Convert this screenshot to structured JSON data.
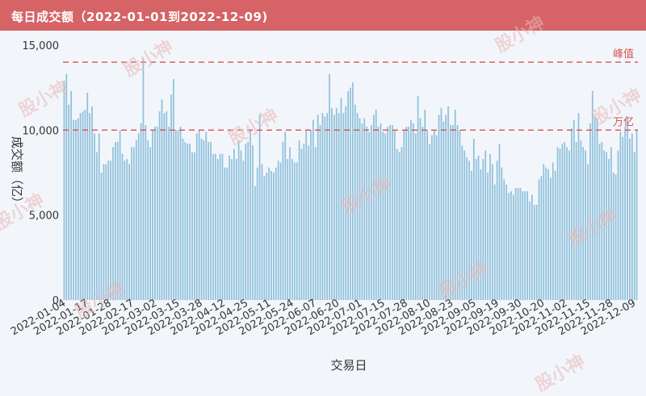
{
  "header": {
    "title": "每日成交额（2022-01-01到2022-12-09)"
  },
  "watermark": "股小神",
  "colors": {
    "header_bg": "#d66365",
    "bar": "#8fc0dc",
    "ref_line": "#d9534f",
    "background": "#f2f6fa"
  },
  "chart_data": {
    "type": "bar",
    "title": "每日成交额（2022-01-01到2022-12-09)",
    "xlabel": "交易日",
    "ylabel": "成交额（亿）",
    "ylim": [
      0,
      15000
    ],
    "yticks": [
      0,
      5000,
      10000,
      15000
    ],
    "ytick_labels": [
      "0",
      "5,000",
      "10,000",
      "15,000"
    ],
    "xtick_labels": [
      "2022-01-04",
      "2022-01-17",
      "2022-01-28",
      "2022-02-17",
      "2022-03-02",
      "2022-03-15",
      "2022-03-28",
      "2022-04-12",
      "2022-04-25",
      "2022-05-11",
      "2022-05-24",
      "2022-06-07",
      "2022-06-20",
      "2022-07-01",
      "2022-07-15",
      "2022-07-28",
      "2022-08-10",
      "2022-08-23",
      "2022-09-05",
      "2022-09-19",
      "2022-09-30",
      "2022-10-20",
      "2022-11-02",
      "2022-11-15",
      "2022-11-28",
      "2022-12-09"
    ],
    "reference_lines": [
      {
        "label": "峰值",
        "value": 14000
      },
      {
        "label": "万亿",
        "value": 10000
      }
    ],
    "values": [
      12900,
      13300,
      11500,
      12300,
      10600,
      10600,
      10700,
      11000,
      11100,
      11200,
      12200,
      11000,
      11400,
      9800,
      8700,
      9800,
      7500,
      8000,
      8000,
      8200,
      8200,
      9000,
      9300,
      9300,
      10000,
      8600,
      8200,
      8300,
      8000,
      9000,
      9000,
      9400,
      9800,
      10400,
      14200,
      10300,
      9400,
      9000,
      10000,
      10200,
      10200,
      11100,
      11800,
      11000,
      11100,
      10200,
      12100,
      13000,
      10000,
      10000,
      10200,
      9500,
      9300,
      9200,
      9200,
      8700,
      8700,
      9800,
      10000,
      9500,
      9400,
      9900,
      9300,
      9300,
      8600,
      8600,
      8300,
      8600,
      8600,
      7800,
      7800,
      8500,
      8300,
      8900,
      8300,
      9400,
      8800,
      8200,
      9200,
      9300,
      10000,
      9100,
      6700,
      7800,
      10900,
      8000,
      7300,
      7500,
      7800,
      7600,
      7500,
      7800,
      8200,
      8100,
      9300,
      9900,
      8300,
      9000,
      8300,
      8100,
      8100,
      9400,
      8900,
      9200,
      10000,
      9100,
      10000,
      10600,
      9000,
      10900,
      10300,
      11000,
      10800,
      11000,
      13300,
      11300,
      10900,
      11300,
      11000,
      11900,
      11000,
      11400,
      12300,
      12500,
      12800,
      11500,
      11000,
      10700,
      10400,
      10700,
      10200,
      9900,
      10300,
      10900,
      11200,
      10200,
      10400,
      9900,
      9800,
      10200,
      10300,
      10300,
      10000,
      8900,
      8700,
      9000,
      10000,
      10200,
      10200,
      10600,
      10400,
      9800,
      12000,
      10700,
      10200,
      11200,
      10000,
      9200,
      9700,
      10000,
      9700,
      10900,
      11300,
      10500,
      10900,
      11400,
      10300,
      10300,
      11200,
      10300,
      10000,
      9100,
      8800,
      8400,
      8200,
      7600,
      9500,
      8300,
      8500,
      7700,
      8300,
      8800,
      7500,
      8600,
      8000,
      6800,
      8200,
      9200,
      7800,
      7100,
      6800,
      6300,
      6400,
      6200,
      6600,
      6600,
      6600,
      6400,
      6400,
      6400,
      5800,
      6200,
      5600,
      5600,
      7100,
      7300,
      8000,
      7800,
      7700,
      7200,
      8100,
      7600,
      9000,
      8900,
      9200,
      9300,
      9000,
      8800,
      10100,
      10600,
      9300,
      11000,
      9400,
      9000,
      8800,
      8000,
      10400,
      12300,
      10800,
      10700,
      9200,
      9300,
      8800,
      8700,
      8300,
      9000,
      7500,
      7400,
      8800,
      9900,
      9600,
      10200,
      10800,
      9500,
      9800,
      8700,
      10000
    ]
  }
}
